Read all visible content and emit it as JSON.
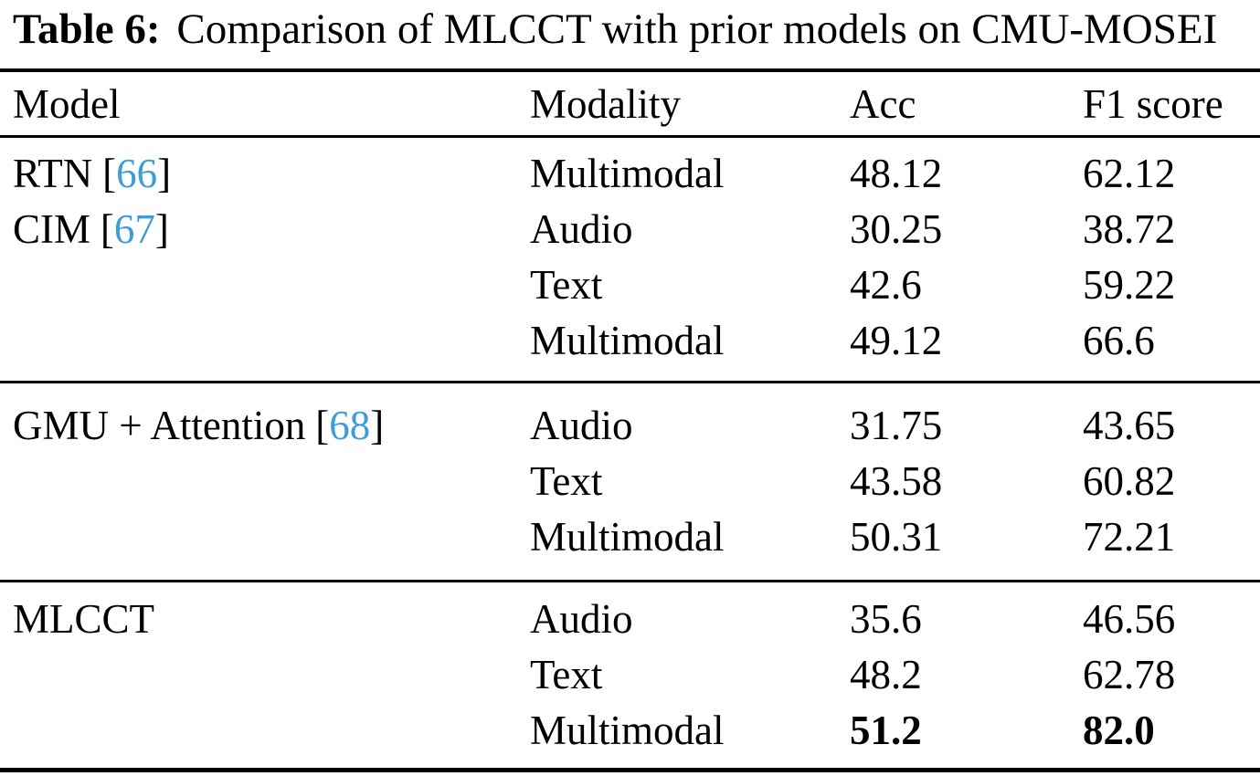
{
  "caption": {
    "label": "Table 6:",
    "text": "Comparison of MLCCT with prior models on CMU-MOSEI"
  },
  "punct": {
    "open_bracket": "[",
    "close_bracket": "]"
  },
  "colors": {
    "citation_blue": "#3c9dd8",
    "text": "#000000",
    "rule": "#000000",
    "background": "#ffffff"
  },
  "table": {
    "columns": [
      "Model",
      "Modality",
      "Acc",
      "F1 score"
    ],
    "groups": [
      {
        "models": [
          {
            "name": "RTN",
            "cite": "66"
          },
          {
            "name": "CIM",
            "cite": "67"
          }
        ],
        "rows": [
          {
            "modality": "Multimodal",
            "acc": "48.12",
            "f1": "62.12"
          },
          {
            "modality": "Audio",
            "acc": "30.25",
            "f1": "38.72"
          },
          {
            "modality": "Text",
            "acc": "42.6",
            "f1": "59.22"
          },
          {
            "modality": "Multimodal",
            "acc": "49.12",
            "f1": "66.6"
          }
        ]
      },
      {
        "models": [
          {
            "name": "GMU + Attention",
            "cite": "68"
          }
        ],
        "rows": [
          {
            "modality": "Audio",
            "acc": "31.75",
            "f1": "43.65"
          },
          {
            "modality": "Text",
            "acc": "43.58",
            "f1": "60.82"
          },
          {
            "modality": "Multimodal",
            "acc": "50.31",
            "f1": "72.21"
          }
        ]
      },
      {
        "models": [
          {
            "name": "MLCCT",
            "cite": null
          }
        ],
        "rows": [
          {
            "modality": "Audio",
            "acc": "35.6",
            "f1": "46.56"
          },
          {
            "modality": "Text",
            "acc": "48.2",
            "f1": "62.78"
          },
          {
            "modality": "Multimodal",
            "acc": "51.2",
            "f1": "82.0",
            "bold": true
          }
        ]
      }
    ]
  }
}
